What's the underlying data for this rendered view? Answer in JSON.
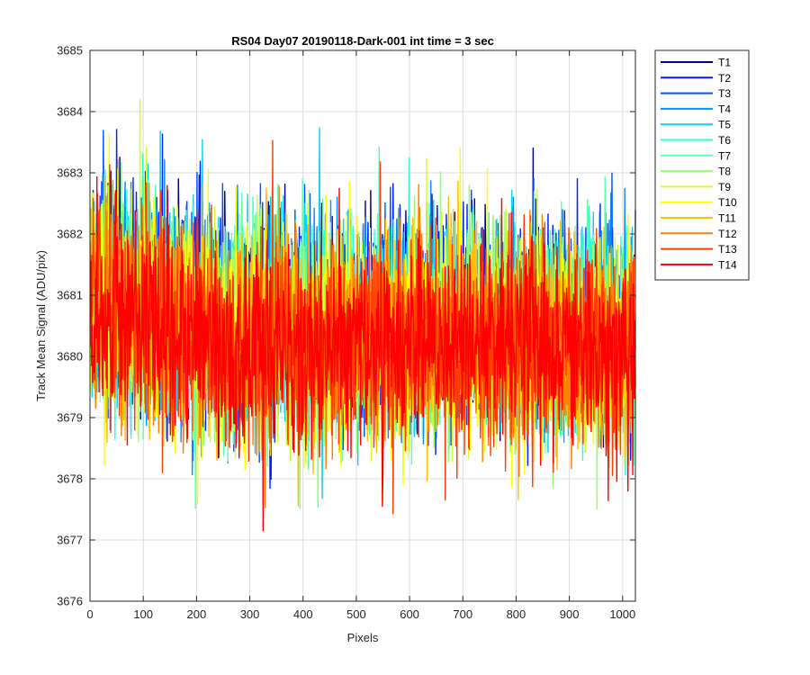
{
  "chart_data": {
    "type": "line",
    "title": "RS04 Day07 20190118-Dark-001 int time = 3 sec",
    "xlabel": "Pixels",
    "ylabel": "Track Mean Signal (ADU/pix)",
    "xlim": [
      0,
      1024
    ],
    "ylim": [
      3676,
      3685
    ],
    "xticks": [
      0,
      100,
      200,
      300,
      400,
      500,
      600,
      700,
      800,
      900,
      1000
    ],
    "yticks": [
      3676,
      3677,
      3678,
      3679,
      3680,
      3681,
      3682,
      3683,
      3684,
      3685
    ],
    "grid": true,
    "legend_location": "outside right, top",
    "x_sampling": "one point per pixel, pixels 1 to 1024",
    "series_profile": {
      "noise_std_adu": 0.85,
      "edge_start_mean_adu": 3680.9,
      "center_mean_adu": 3680.3,
      "edge_end_mean_adu": 3680.1,
      "min_adu": 3677.0,
      "max_adu": 3684.75
    },
    "series": [
      {
        "name": "T1",
        "color": "#00008f",
        "mean_offset": 0.35
      },
      {
        "name": "T2",
        "color": "#0020ff",
        "mean_offset": 0.3
      },
      {
        "name": "T3",
        "color": "#0050ff",
        "mean_offset": 0.28
      },
      {
        "name": "T4",
        "color": "#0090ff",
        "mean_offset": 0.24
      },
      {
        "name": "T5",
        "color": "#10cfef",
        "mean_offset": 0.2
      },
      {
        "name": "T6",
        "color": "#30ffcf",
        "mean_offset": 0.17
      },
      {
        "name": "T7",
        "color": "#60ffaf",
        "mean_offset": 0.13
      },
      {
        "name": "T8",
        "color": "#90ff70",
        "mean_offset": 0.09
      },
      {
        "name": "T9",
        "color": "#cfff30",
        "mean_offset": 0.05
      },
      {
        "name": "T10",
        "color": "#ffff00",
        "mean_offset": 0.02
      },
      {
        "name": "T11",
        "color": "#ffbf00",
        "mean_offset": -0.02
      },
      {
        "name": "T12",
        "color": "#ff7f00",
        "mean_offset": -0.05
      },
      {
        "name": "T13",
        "color": "#ff3f00",
        "mean_offset": -0.08
      },
      {
        "name": "T14",
        "color": "#ff0000",
        "mean_offset": -0.1
      }
    ]
  }
}
